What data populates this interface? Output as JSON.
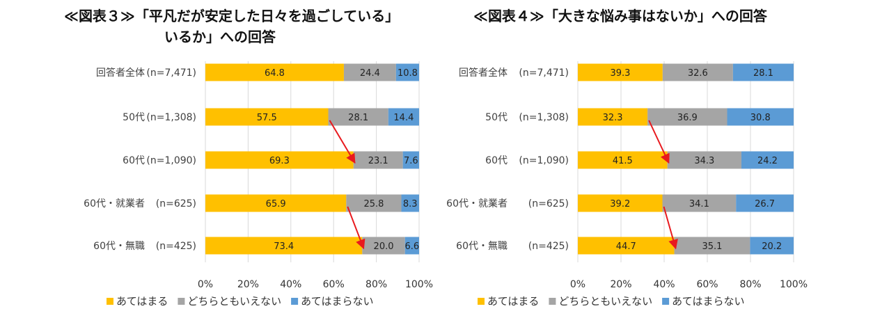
{
  "chart_data": [
    {
      "type": "bar",
      "orientation": "horizontal",
      "stacked": true,
      "title_lines": [
        "≪図表３≫「平凡だが安定した日々を過ごしている」",
        "いるか」への回答"
      ],
      "categories": [
        "回答者全体",
        "50代",
        "60代",
        "60代・就業者",
        "60代・無職"
      ],
      "n_labels": [
        "(n=7,471)",
        "(n=1,308)",
        "(n=1,090)",
        "(n=625)",
        "(n=425)"
      ],
      "series": [
        {
          "name": "あてはまる",
          "values": [
            64.8,
            57.5,
            69.3,
            65.9,
            73.4
          ],
          "labels": [
            "64.8",
            "57.5",
            "69.3",
            "65.9",
            "73.4"
          ]
        },
        {
          "name": "どちらともいえない",
          "values": [
            24.4,
            28.1,
            23.1,
            25.8,
            20.0
          ],
          "labels": [
            "24.4",
            "28.1",
            "23.1",
            "25.8",
            "20.0"
          ]
        },
        {
          "name": "あてはまらない",
          "values": [
            10.8,
            14.4,
            7.6,
            8.3,
            6.6
          ],
          "labels": [
            "10.8",
            "14.4",
            "7.6",
            "8.3",
            "6.6"
          ]
        }
      ],
      "xticks": [
        "0%",
        "20%",
        "40%",
        "60%",
        "80%",
        "100%"
      ],
      "xlim": [
        0,
        100
      ],
      "grid": true,
      "legend": "bottom",
      "arrows": [
        [
          1,
          2
        ],
        [
          3,
          4
        ]
      ]
    },
    {
      "type": "bar",
      "orientation": "horizontal",
      "stacked": true,
      "title_lines": [
        "≪図表４≫「大きな悩み事はないか」への回答"
      ],
      "categories": [
        "回答者全体",
        "50代",
        "60代",
        "60代・就業者",
        "60代・無職"
      ],
      "n_labels": [
        "(n=7,471)",
        "(n=1,308)",
        "(n=1,090)",
        "(n=625)",
        "(n=425)"
      ],
      "series": [
        {
          "name": "あてはまる",
          "values": [
            39.3,
            32.3,
            41.5,
            39.2,
            44.7
          ],
          "labels": [
            "39.3",
            "32.3",
            "41.5",
            "39.2",
            "44.7"
          ]
        },
        {
          "name": "どちらともいえない",
          "values": [
            32.6,
            36.9,
            34.3,
            34.1,
            35.1
          ],
          "labels": [
            "32.6",
            "36.9",
            "34.3",
            "34.1",
            "35.1"
          ]
        },
        {
          "name": "あてはまらない",
          "values": [
            28.1,
            30.8,
            24.2,
            26.7,
            20.2
          ],
          "labels": [
            "28.1",
            "30.8",
            "24.2",
            "26.7",
            "20.2"
          ]
        }
      ],
      "xticks": [
        "0%",
        "20%",
        "40%",
        "60%",
        "80%",
        "100%"
      ],
      "xlim": [
        0,
        100
      ],
      "grid": true,
      "legend": "bottom",
      "arrows": [
        [
          1,
          2
        ],
        [
          3,
          4
        ]
      ]
    }
  ],
  "colors": {
    "series": [
      "#FFC000",
      "#A5A5A5",
      "#5B9BD5"
    ],
    "arrow": "#E8191E",
    "grid": "#D9D9D9"
  }
}
